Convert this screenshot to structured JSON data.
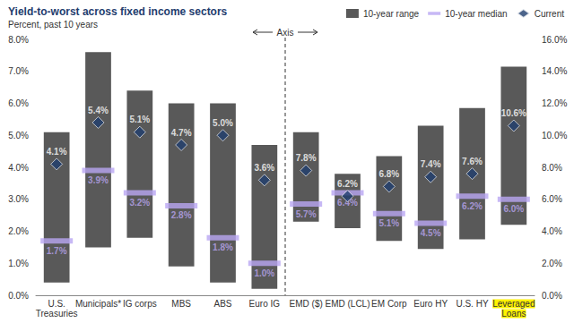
{
  "chart_data": {
    "type": "range",
    "title": "Yield-to-worst across fixed income sectors",
    "subtitle": "Percent, past 10 years",
    "annotations": [
      "Axis"
    ],
    "categories": [
      "U.S.\nTreasuries",
      "Municipals*",
      "IG corps",
      "MBS",
      "ABS",
      "Euro IG",
      "EMD ($)",
      "EMD (LCL)",
      "EM Corp",
      "Euro HY",
      "U.S. HY",
      "Leveraged\nLoans"
    ],
    "ylim": [
      0,
      8
    ],
    "yticks": [
      {
        "value": 0,
        "label": "0.0%"
      },
      {
        "value": 1,
        "label": "1.0%"
      },
      {
        "value": 2,
        "label": "2.0%"
      },
      {
        "value": 3,
        "label": "3.0%"
      },
      {
        "value": 4,
        "label": "4.0%"
      },
      {
        "value": 5,
        "label": "5.0%"
      },
      {
        "value": 6,
        "label": "6.0%"
      },
      {
        "value": 7,
        "label": "7.0%"
      },
      {
        "value": 8,
        "label": "8.0%"
      }
    ],
    "y2lim": [
      0,
      16
    ],
    "y2ticks": [
      {
        "value": 0,
        "label": "0.0%"
      },
      {
        "value": 2,
        "label": "2.0%"
      },
      {
        "value": 4,
        "label": "4.0%"
      },
      {
        "value": 6,
        "label": "6.0%"
      },
      {
        "value": 8,
        "label": "8.0%"
      },
      {
        "value": 10,
        "label": "10.0%"
      },
      {
        "value": 12,
        "label": "12.0%"
      },
      {
        "value": 14,
        "label": "14.0%"
      },
      {
        "value": 16,
        "label": "16.0%"
      }
    ],
    "grid": false,
    "legend": "upper right",
    "data_labels": true,
    "series": [
      {
        "name": "10-year range",
        "type": "range",
        "color": "#595959",
        "low": [
          0.4,
          1.5,
          1.8,
          0.9,
          0.4,
          0.2,
          null,
          null,
          null,
          null,
          null,
          null
        ],
        "high": [
          5.1,
          7.6,
          6.4,
          6.0,
          6.0,
          4.7,
          null,
          null,
          null,
          null,
          null,
          null
        ]
      },
      {
        "name": "10-year range",
        "type": "range",
        "color": "#595959",
        "axis": "y2",
        "low": [
          null,
          null,
          null,
          null,
          null,
          null,
          4.6,
          4.2,
          3.4,
          2.9,
          3.5,
          4.4
        ],
        "high": [
          null,
          null,
          null,
          null,
          null,
          null,
          10.2,
          7.6,
          8.7,
          10.6,
          11.7,
          14.3
        ]
      },
      {
        "name": "10-year median",
        "type": "scatter",
        "marker": "line",
        "color": "#b9a6f2",
        "values": [
          1.7,
          3.9,
          3.2,
          2.8,
          1.8,
          1.0,
          null,
          null,
          null,
          null,
          null,
          null
        ],
        "value_labels": [
          "1.7%",
          "3.9%",
          "3.2%",
          "2.8%",
          "1.8%",
          "1.0%",
          null,
          null,
          null,
          null,
          null,
          null
        ]
      },
      {
        "name": "10-year median",
        "type": "scatter",
        "marker": "line",
        "color": "#b9a6f2",
        "axis": "y2",
        "values": [
          null,
          null,
          null,
          null,
          null,
          null,
          5.7,
          6.4,
          5.1,
          4.5,
          6.2,
          6.0
        ],
        "value_labels": [
          null,
          null,
          null,
          null,
          null,
          null,
          "5.7%",
          "6.4%",
          "5.1%",
          "4.5%",
          "6.2%",
          "6.0%"
        ]
      },
      {
        "name": "Current",
        "type": "scatter",
        "marker": "diamond",
        "color": "#1f3d6e",
        "values": [
          4.1,
          5.4,
          5.1,
          4.7,
          5.0,
          3.6,
          null,
          null,
          null,
          null,
          null,
          null
        ],
        "value_labels": [
          "4.1%",
          "5.4%",
          "5.1%",
          "4.7%",
          "5.0%",
          "3.6%",
          null,
          null,
          null,
          null,
          null,
          null
        ]
      },
      {
        "name": "Current",
        "type": "scatter",
        "marker": "diamond",
        "color": "#1f3d6e",
        "axis": "y2",
        "values": [
          null,
          null,
          null,
          null,
          null,
          null,
          7.8,
          6.2,
          6.8,
          7.4,
          7.6,
          10.6
        ],
        "value_labels": [
          null,
          null,
          null,
          null,
          null,
          null,
          "7.8%",
          "6.2%",
          "6.8%",
          "7.4%",
          "7.6%",
          "10.6%"
        ]
      }
    ]
  }
}
